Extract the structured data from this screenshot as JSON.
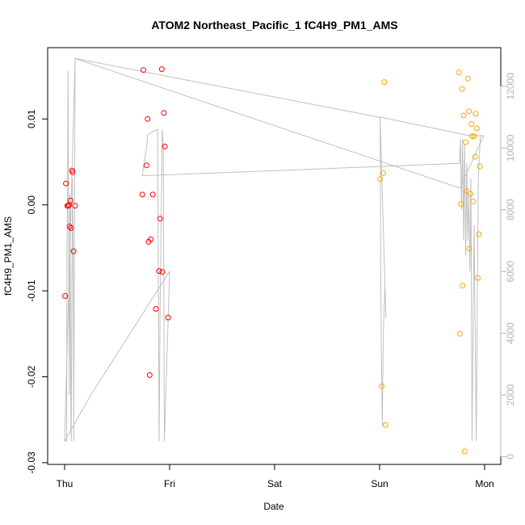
{
  "chart_data": {
    "type": "scatter",
    "title": "ATOM2 Northeast_Pacific_1 fC4H9_PM1_AMS",
    "xlabel": "Date",
    "ylabel": "fC4H9_PM1_AMS",
    "x_ticks": [
      {
        "label": "Thu",
        "day": 0
      },
      {
        "label": "Fri",
        "day": 1
      },
      {
        "label": "Sat",
        "day": 2
      },
      {
        "label": "Sun",
        "day": 3
      },
      {
        "label": "Mon",
        "day": 4
      }
    ],
    "xlim_days": [
      -0.2,
      4.1
    ],
    "y_ticks": [
      {
        "label": "-0.03",
        "value": -0.03
      },
      {
        "label": "-0.02",
        "value": -0.02
      },
      {
        "label": "-0.01",
        "value": -0.01
      },
      {
        "label": "0.00",
        "value": 0.0
      },
      {
        "label": "0.01",
        "value": 0.01
      }
    ],
    "ylim": [
      -0.0302,
      0.0183
    ],
    "y2_ticks": [
      {
        "label": "0",
        "value": 0
      },
      {
        "label": "2000",
        "value": 2000
      },
      {
        "label": "4000",
        "value": 4000
      },
      {
        "label": "6000",
        "value": 6000
      },
      {
        "label": "8000",
        "value": 8000
      },
      {
        "label": "10000",
        "value": 10000
      },
      {
        "label": "12000",
        "value": 12000
      }
    ],
    "y2lim": [
      -250,
      13250
    ],
    "colors": {
      "series_red": "#ff0000",
      "series_orange": "#ffa500",
      "line": "#c0c0c0",
      "right_axis": "#b3b3b3"
    },
    "series": [
      {
        "color": "#ff0000",
        "points": [
          [
            0.005,
            -0.0106
          ],
          [
            0.012,
            0.0025
          ],
          [
            0.025,
            -0.0001
          ],
          [
            0.035,
            -0.0001
          ],
          [
            0.042,
            0.0
          ],
          [
            0.047,
            -0.0025
          ],
          [
            0.055,
            0.0005
          ],
          [
            0.06,
            -0.0027
          ],
          [
            0.07,
            0.004
          ],
          [
            0.077,
            0.0038
          ],
          [
            0.085,
            -0.0054
          ],
          [
            0.1,
            -0.0001
          ],
          [
            0.75,
            0.0157
          ],
          [
            0.74,
            0.0012
          ],
          [
            0.78,
            0.0046
          ],
          [
            0.79,
            0.01
          ],
          [
            0.8,
            -0.0043
          ],
          [
            0.81,
            -0.0198
          ],
          [
            0.82,
            -0.004
          ],
          [
            0.84,
            0.0012
          ],
          [
            0.87,
            -0.0121
          ],
          [
            0.9,
            -0.0077
          ],
          [
            0.91,
            -0.0016
          ],
          [
            0.925,
            0.0158
          ],
          [
            0.93,
            -0.0078
          ],
          [
            0.945,
            0.0107
          ],
          [
            0.955,
            0.0068
          ],
          [
            0.985,
            -0.0131
          ]
        ]
      },
      {
        "color": "#ffa500",
        "points": [
          [
            3.005,
            0.003
          ],
          [
            3.02,
            -0.0211
          ],
          [
            3.035,
            0.0037
          ],
          [
            3.045,
            0.0143
          ],
          [
            3.055,
            -0.0256
          ],
          [
            3.755,
            0.0154
          ],
          [
            3.765,
            -0.015
          ],
          [
            3.775,
            0.0001
          ],
          [
            3.785,
            0.0135
          ],
          [
            3.79,
            -0.0094
          ],
          [
            3.8,
            0.0104
          ],
          [
            3.81,
            -0.0287
          ],
          [
            3.82,
            0.0073
          ],
          [
            3.83,
            0.0016
          ],
          [
            3.84,
            0.0147
          ],
          [
            3.85,
            0.0109
          ],
          [
            3.855,
            -0.0051
          ],
          [
            3.865,
            0.0013
          ],
          [
            3.875,
            0.0094
          ],
          [
            3.88,
            0.008
          ],
          [
            3.89,
            0.0004
          ],
          [
            3.9,
            0.008
          ],
          [
            3.91,
            0.0056
          ],
          [
            3.915,
            0.0106
          ],
          [
            3.925,
            0.0089
          ],
          [
            3.935,
            -0.0085
          ],
          [
            3.945,
            -0.0034
          ],
          [
            3.955,
            0.0045
          ]
        ]
      }
    ],
    "line_y2": [
      [
        0.0,
        500
      ],
      [
        0.02,
        500
      ],
      [
        0.022,
        6500
      ],
      [
        0.027,
        8000
      ],
      [
        0.03,
        10000
      ],
      [
        0.033,
        12500
      ],
      [
        0.036,
        9500
      ],
      [
        0.04,
        6000
      ],
      [
        0.046,
        2000
      ],
      [
        0.05,
        8500
      ],
      [
        0.055,
        5000
      ],
      [
        0.06,
        1000
      ],
      [
        0.063,
        500
      ],
      [
        0.066,
        3000
      ],
      [
        0.07,
        6000
      ],
      [
        0.075,
        9000
      ],
      [
        0.08,
        7000
      ],
      [
        0.085,
        3000
      ],
      [
        0.087,
        500
      ],
      [
        0.1,
        12900
      ],
      [
        2.99,
        11000
      ],
      [
        3.005,
        11000
      ],
      [
        3.01,
        6500
      ],
      [
        3.015,
        4000
      ],
      [
        3.025,
        1000
      ],
      [
        3.035,
        4000
      ],
      [
        3.05,
        5500
      ],
      [
        3.06,
        4500
      ],
      [
        3.005,
        11000
      ],
      [
        3.85,
        10400
      ],
      [
        3.99,
        10400
      ],
      [
        3.765,
        8700
      ],
      [
        0.1,
        12900
      ],
      [
        0.0,
        500
      ],
      [
        0.25,
        2000
      ],
      [
        1.0,
        6000
      ],
      [
        1.0,
        6000
      ],
      [
        0.95,
        500
      ],
      [
        0.94,
        10000
      ],
      [
        0.93,
        10600
      ],
      [
        0.91,
        5000
      ],
      [
        0.9,
        500
      ],
      [
        0.885,
        10600
      ],
      [
        0.82,
        10500
      ],
      [
        0.79,
        10400
      ],
      [
        0.78,
        10000
      ],
      [
        0.76,
        9600
      ],
      [
        0.74,
        9100
      ],
      [
        3.76,
        9500
      ],
      [
        3.77,
        10300
      ],
      [
        3.78,
        8000
      ],
      [
        3.79,
        10300
      ],
      [
        3.8,
        7000
      ],
      [
        3.81,
        10100
      ],
      [
        3.82,
        6500
      ],
      [
        3.83,
        9500
      ],
      [
        3.84,
        7000
      ],
      [
        3.85,
        8500
      ],
      [
        3.86,
        6000
      ],
      [
        3.87,
        9000
      ],
      [
        3.88,
        500
      ],
      [
        3.9,
        7500
      ],
      [
        3.92,
        500
      ],
      [
        3.94,
        9000
      ],
      [
        3.96,
        10400
      ],
      [
        3.99,
        10400
      ]
    ]
  }
}
